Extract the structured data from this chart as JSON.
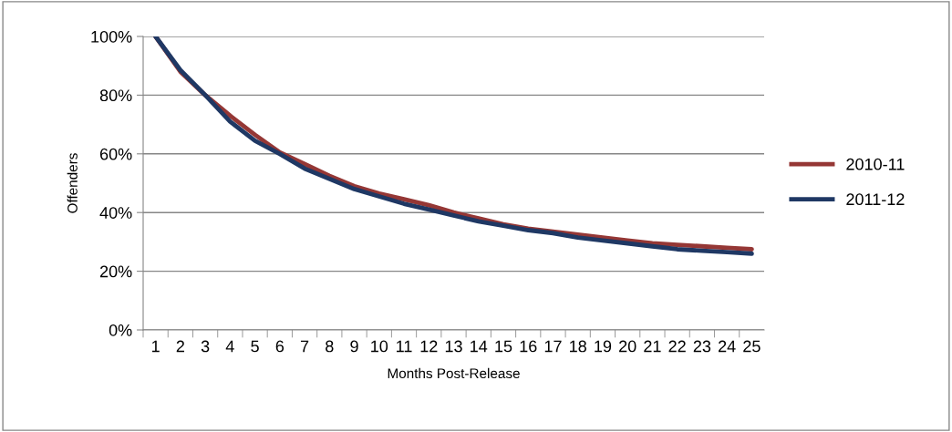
{
  "chart_data": {
    "type": "line",
    "xlabel": "Months Post-Release",
    "ylabel": "Offenders",
    "categories": [
      "1",
      "2",
      "3",
      "4",
      "5",
      "6",
      "7",
      "8",
      "9",
      "10",
      "11",
      "12",
      "13",
      "14",
      "15",
      "16",
      "17",
      "18",
      "19",
      "20",
      "21",
      "22",
      "23",
      "24",
      "25"
    ],
    "series": [
      {
        "name": "2010-11",
        "color": "#953735",
        "values": [
          100,
          88,
          80,
          73,
          66.5,
          60.5,
          56.5,
          52.5,
          49,
          46.5,
          44.5,
          42.5,
          40,
          38,
          36,
          34.5,
          33.5,
          32.5,
          31.5,
          30.5,
          29.5,
          29,
          28.5,
          28,
          27.5
        ]
      },
      {
        "name": "2011-12",
        "color": "#1f3864",
        "values": [
          100,
          88.5,
          80,
          71,
          64.5,
          60,
          55,
          51.5,
          48,
          45.5,
          43,
          41,
          39,
          37,
          35.5,
          34,
          33,
          31.5,
          30.5,
          29.5,
          28.5,
          27.5,
          27,
          26.5,
          26
        ]
      }
    ],
    "ylim": [
      0,
      100
    ],
    "yticks": [
      {
        "value": 0,
        "label": "0%"
      },
      {
        "value": 20,
        "label": "20%"
      },
      {
        "value": 40,
        "label": "40%"
      },
      {
        "value": 60,
        "label": "60%"
      },
      {
        "value": 80,
        "label": "80%"
      },
      {
        "value": 100,
        "label": "100%"
      }
    ],
    "grid": "y",
    "legend": "right",
    "marker": "none",
    "line_style": "solid"
  }
}
